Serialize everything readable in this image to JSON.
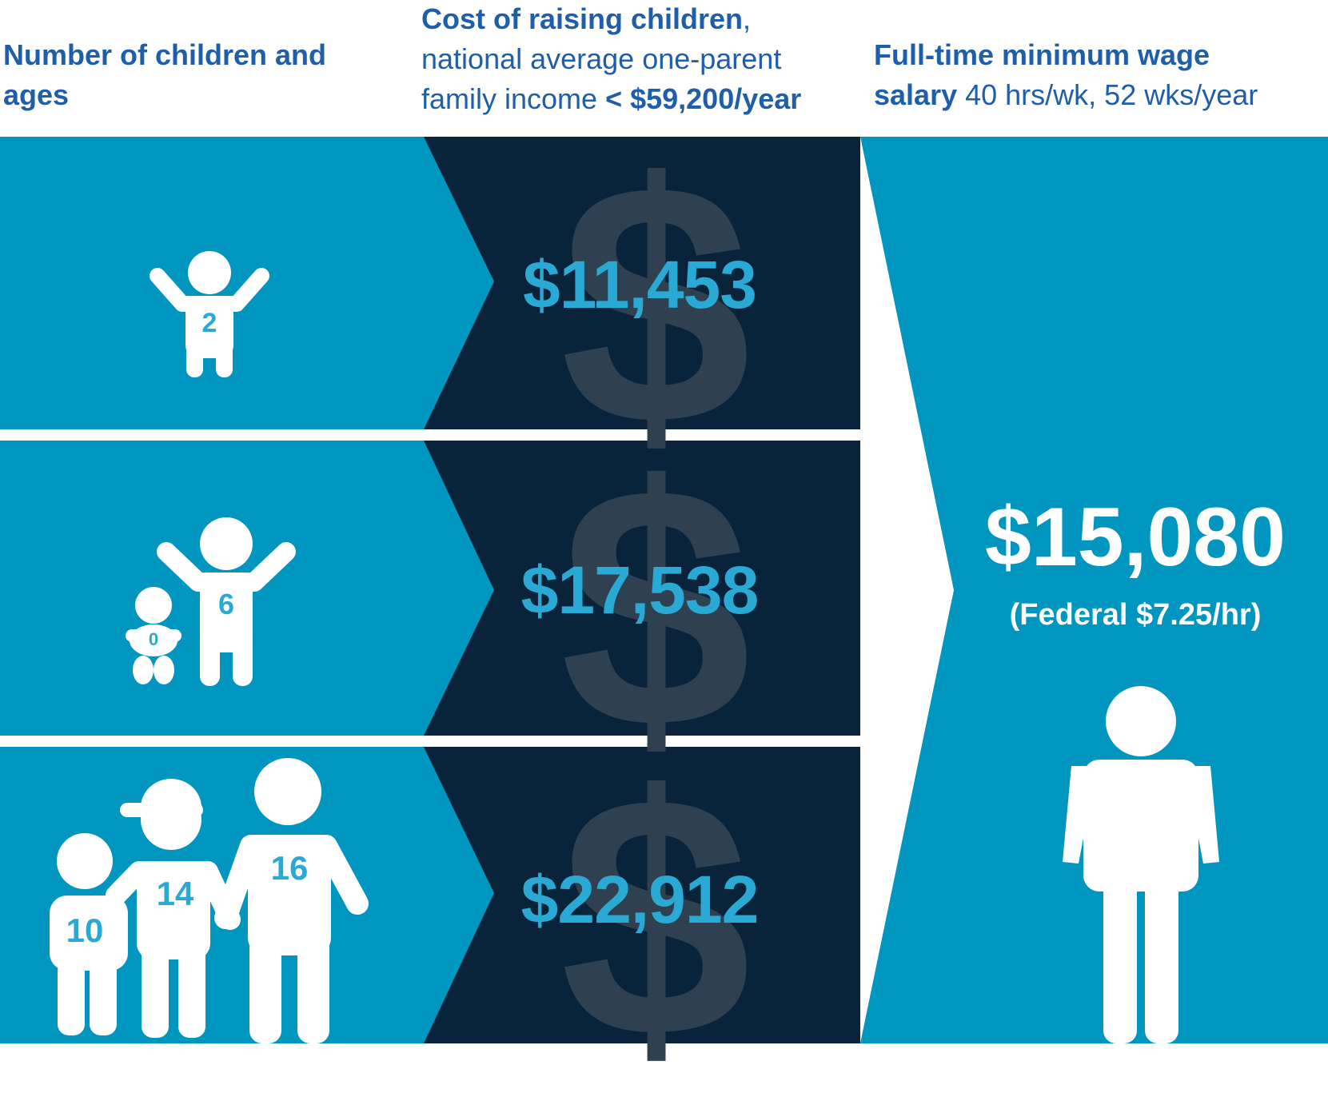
{
  "headers": {
    "children": {
      "bold": "Number of children and ages"
    },
    "cost": {
      "bold": "Cost of raising children",
      "comma": ",",
      "line2": "national average one-parent",
      "line3_plain": "family income ",
      "line3_bold": "< $59,200/year"
    },
    "wage": {
      "bold1": "Full-time minimum wage",
      "bold2": "salary",
      "rest": " 40 hrs/wk, 52 wks/year"
    }
  },
  "rows": [
    {
      "ages": [
        "2"
      ],
      "cost": "$11,453"
    },
    {
      "ages": [
        "0",
        "6"
      ],
      "cost": "$17,538"
    },
    {
      "ages": [
        "10",
        "14",
        "16"
      ],
      "cost": "$22,912"
    }
  ],
  "wage": {
    "value": "$15,080",
    "note": "(Federal $7.25/hr)"
  },
  "watermark": "$",
  "colors": {
    "light_blue": "#0096bf",
    "dark_navy": "#08233a",
    "header_text": "#1f5ea8",
    "value_blue": "#29a9d3",
    "white": "#ffffff"
  },
  "icons": [
    "child-figure-icon",
    "baby-icon",
    "adult-figure-icon",
    "cap-icon",
    "dollar-watermark-icon"
  ]
}
